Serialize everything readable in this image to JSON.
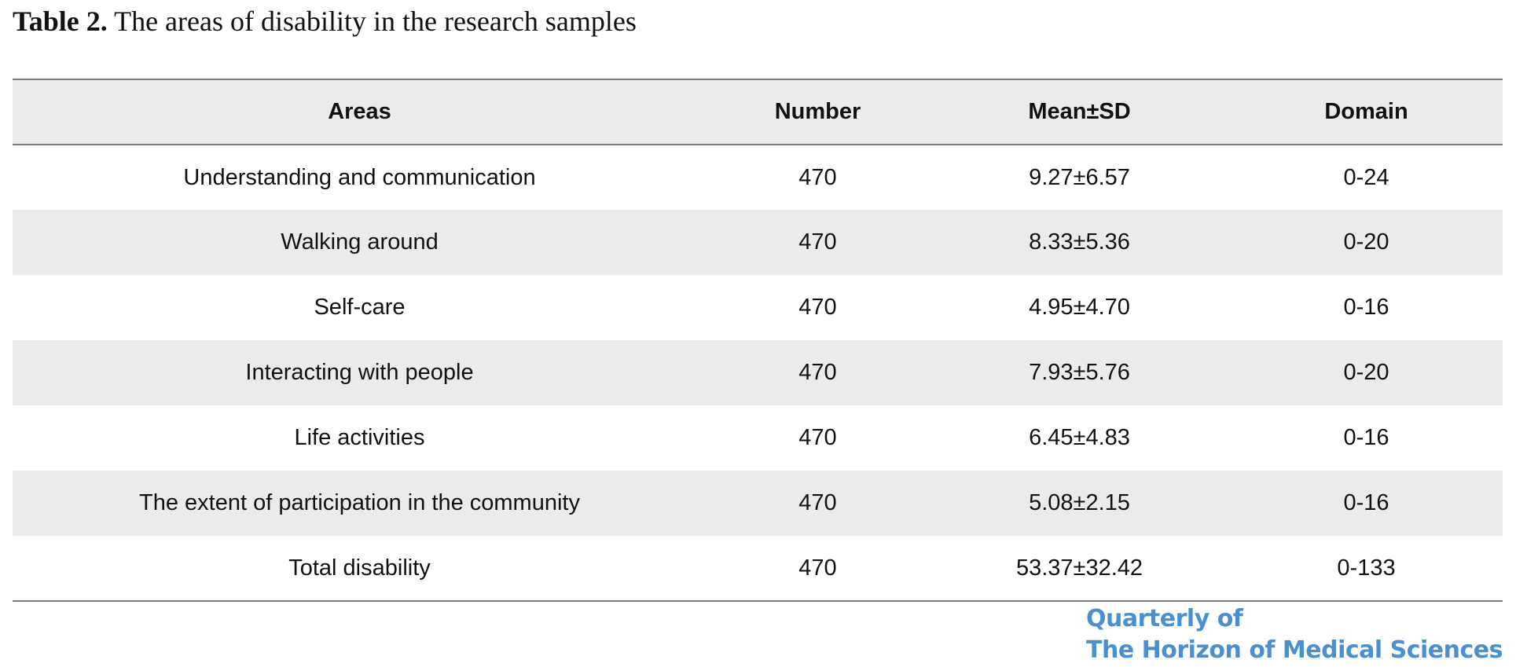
{
  "caption": {
    "label": "Table 2.",
    "text": "The areas of disability in the research samples"
  },
  "table": {
    "headers": [
      "Areas",
      "Number",
      "Mean±SD",
      "Domain"
    ],
    "rows": [
      [
        "Understanding and communication",
        "470",
        "9.27±6.57",
        "0-24"
      ],
      [
        "Walking around",
        "470",
        "8.33±5.36",
        "0-20"
      ],
      [
        "Self-care",
        "470",
        "4.95±4.70",
        "0-16"
      ],
      [
        "Interacting with people",
        "470",
        "7.93±5.76",
        "0-20"
      ],
      [
        "Life activities",
        "470",
        "6.45±4.83",
        "0-16"
      ],
      [
        "The extent of participation in the community",
        "470",
        "5.08±2.15",
        "0-16"
      ],
      [
        "Total disability",
        "470",
        "53.37±32.42",
        "0-133"
      ]
    ]
  },
  "journal": {
    "line1": "Quarterly of",
    "line2": "The Horizon of Medical Sciences",
    "color": "#4a90d0"
  }
}
